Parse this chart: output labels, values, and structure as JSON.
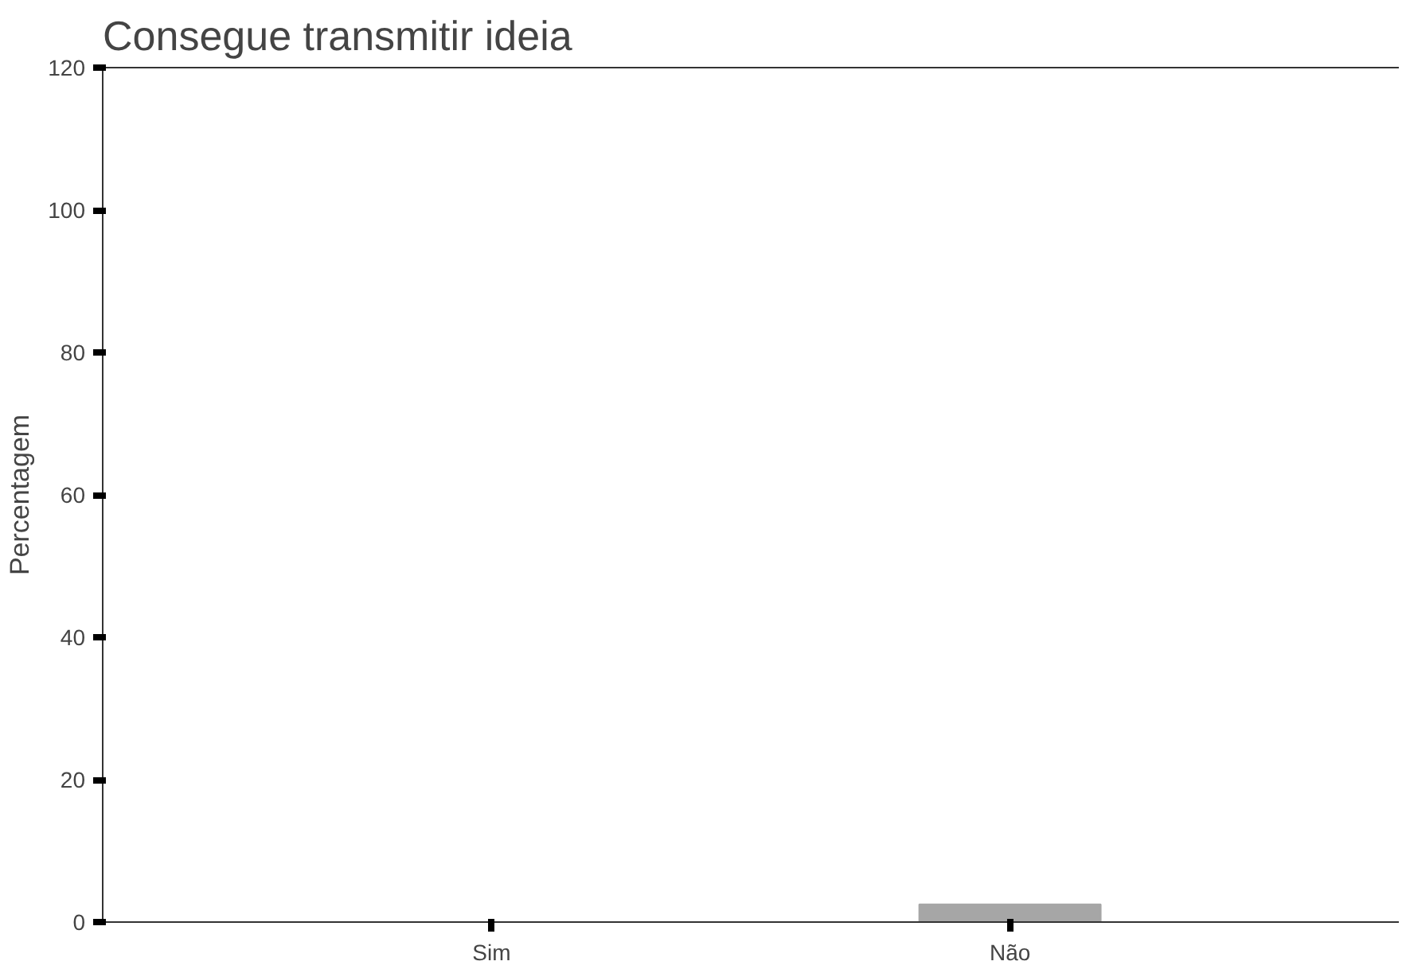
{
  "chart_data": {
    "type": "bar",
    "title": "Consegue transmitir ideia",
    "ylabel": "Percentagem",
    "categories": [
      "Sim",
      "Não"
    ],
    "values": [
      0,
      2.5
    ],
    "color": "#a6a6a6",
    "ylim": [
      0,
      120
    ],
    "yticks": [
      0,
      20,
      40,
      60,
      80,
      100,
      120
    ],
    "grid": false
  }
}
